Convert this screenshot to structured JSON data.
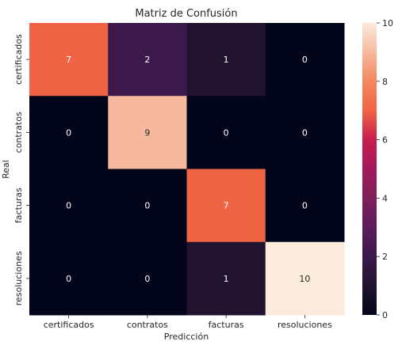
{
  "chart_data": {
    "type": "heatmap",
    "title": "Matriz de Confusión",
    "xlabel": "Predicción",
    "ylabel": "Real",
    "x_categories": [
      "certificados",
      "contratos",
      "facturas",
      "resoluciones"
    ],
    "y_categories": [
      "certificados",
      "contratos",
      "facturas",
      "resoluciones"
    ],
    "values": [
      [
        7,
        2,
        1,
        0
      ],
      [
        0,
        9,
        0,
        0
      ],
      [
        0,
        0,
        7,
        0
      ],
      [
        0,
        0,
        1,
        10
      ]
    ],
    "colorbar": {
      "min": 0,
      "max": 10,
      "ticks": [
        0,
        2,
        4,
        6,
        8,
        10
      ],
      "colormap": "rocket"
    },
    "grid": false
  }
}
